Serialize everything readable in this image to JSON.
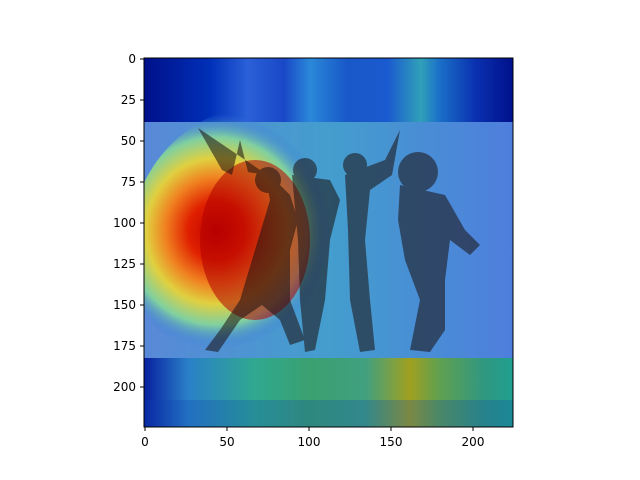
{
  "figure": {
    "image_description": "Grad-CAM style heatmap overlay on photo of four people posing on a stage",
    "colormap": "jet",
    "x_ticks": [
      "0",
      "50",
      "100",
      "150",
      "200"
    ],
    "y_ticks": [
      "0",
      "25",
      "50",
      "75",
      "100",
      "125",
      "150",
      "175",
      "200"
    ],
    "x_tick_values": [
      0,
      50,
      100,
      150,
      200
    ],
    "y_tick_values": [
      0,
      25,
      50,
      75,
      100,
      125,
      150,
      175,
      200
    ],
    "x_range": [
      0,
      224
    ],
    "y_range": [
      0,
      224
    ]
  }
}
